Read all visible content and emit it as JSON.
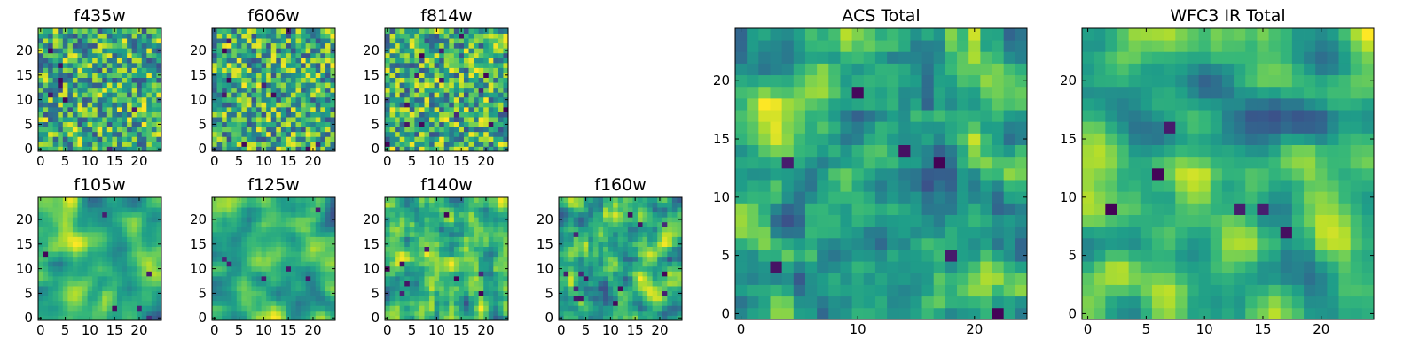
{
  "chart_data": [
    {
      "type": "heatmap",
      "title": "f435w",
      "grid_size": 25,
      "xlim": [
        -0.5,
        24.5
      ],
      "ylim": [
        -0.5,
        24.5
      ],
      "xticks": [
        0,
        5,
        10,
        15,
        20
      ],
      "xtick_labels": [
        "0",
        "5",
        "10",
        "15",
        "20"
      ],
      "yticks": [
        0,
        5,
        10,
        15,
        20
      ],
      "ytick_labels": [
        "0",
        "5",
        "10",
        "15",
        "20"
      ],
      "colormap": "viridis",
      "seed": 11,
      "smoothing": 0,
      "dark_spots": 8
    },
    {
      "type": "heatmap",
      "title": "f606w",
      "grid_size": 25,
      "xlim": [
        -0.5,
        24.5
      ],
      "ylim": [
        -0.5,
        24.5
      ],
      "xticks": [
        0,
        5,
        10,
        15,
        20
      ],
      "xtick_labels": [
        "0",
        "5",
        "10",
        "15",
        "20"
      ],
      "yticks": [
        0,
        5,
        10,
        15,
        20
      ],
      "ytick_labels": [
        "0",
        "5",
        "10",
        "15",
        "20"
      ],
      "colormap": "viridis",
      "seed": 23,
      "smoothing": 0,
      "dark_spots": 10
    },
    {
      "type": "heatmap",
      "title": "f814w",
      "grid_size": 25,
      "xlim": [
        -0.5,
        24.5
      ],
      "ylim": [
        -0.5,
        24.5
      ],
      "xticks": [
        0,
        5,
        10,
        15,
        20
      ],
      "xtick_labels": [
        "0",
        "5",
        "10",
        "15",
        "20"
      ],
      "yticks": [
        0,
        5,
        10,
        15,
        20
      ],
      "ytick_labels": [
        "0",
        "5",
        "10",
        "15",
        "20"
      ],
      "colormap": "viridis",
      "seed": 37,
      "smoothing": 0,
      "dark_spots": 14
    },
    {
      "type": "heatmap",
      "title": "f105w",
      "grid_size": 25,
      "xlim": [
        -0.5,
        24.5
      ],
      "ylim": [
        -0.5,
        24.5
      ],
      "xticks": [
        0,
        5,
        10,
        15,
        20
      ],
      "xtick_labels": [
        "0",
        "5",
        "10",
        "15",
        "20"
      ],
      "yticks": [
        0,
        5,
        10,
        15,
        20
      ],
      "ytick_labels": [
        "0",
        "5",
        "10",
        "15",
        "20"
      ],
      "colormap": "viridis",
      "seed": 41,
      "smoothing": 2,
      "dark_spots": 6
    },
    {
      "type": "heatmap",
      "title": "f125w",
      "grid_size": 25,
      "xlim": [
        -0.5,
        24.5
      ],
      "ylim": [
        -0.5,
        24.5
      ],
      "xticks": [
        0,
        5,
        10,
        15,
        20
      ],
      "xtick_labels": [
        "0",
        "5",
        "10",
        "15",
        "20"
      ],
      "yticks": [
        0,
        5,
        10,
        15,
        20
      ],
      "ytick_labels": [
        "0",
        "5",
        "10",
        "15",
        "20"
      ],
      "colormap": "viridis",
      "seed": 53,
      "smoothing": 2,
      "dark_spots": 6
    },
    {
      "type": "heatmap",
      "title": "f140w",
      "grid_size": 25,
      "xlim": [
        -0.5,
        24.5
      ],
      "ylim": [
        -0.5,
        24.5
      ],
      "xticks": [
        0,
        5,
        10,
        15,
        20
      ],
      "xtick_labels": [
        "0",
        "5",
        "10",
        "15",
        "20"
      ],
      "yticks": [
        0,
        5,
        10,
        15,
        20
      ],
      "ytick_labels": [
        "0",
        "5",
        "10",
        "15",
        "20"
      ],
      "colormap": "viridis",
      "seed": 67,
      "smoothing": 1,
      "dark_spots": 9
    },
    {
      "type": "heatmap",
      "title": "f160w",
      "grid_size": 25,
      "xlim": [
        -0.5,
        24.5
      ],
      "ylim": [
        -0.5,
        24.5
      ],
      "xticks": [
        0,
        5,
        10,
        15,
        20
      ],
      "xtick_labels": [
        "0",
        "5",
        "10",
        "15",
        "20"
      ],
      "yticks": [
        0,
        5,
        10,
        15,
        20
      ],
      "ytick_labels": [
        "0",
        "5",
        "10",
        "15",
        "20"
      ],
      "colormap": "viridis",
      "seed": 79,
      "smoothing": 1,
      "dark_spots": 14
    },
    {
      "type": "heatmap",
      "title": "ACS Total",
      "grid_size": 25,
      "xlim": [
        -0.5,
        24.5
      ],
      "ylim": [
        -0.5,
        24.5
      ],
      "xticks": [
        0,
        10,
        20
      ],
      "xtick_labels": [
        "0",
        "10",
        "20"
      ],
      "yticks": [
        0,
        5,
        10,
        15,
        20
      ],
      "ytick_labels": [
        "0",
        "5",
        "10",
        "15",
        "20"
      ],
      "colormap": "viridis",
      "seed": 83,
      "smoothing": 1,
      "dark_spots": 7
    },
    {
      "type": "heatmap",
      "title": "WFC3 IR Total",
      "grid_size": 25,
      "xlim": [
        -0.5,
        24.5
      ],
      "ylim": [
        -0.5,
        24.5
      ],
      "xticks": [
        0,
        5,
        10,
        15,
        20
      ],
      "xtick_labels": [
        "0",
        "5",
        "10",
        "15",
        "20"
      ],
      "yticks": [
        0,
        5,
        10,
        15,
        20
      ],
      "ytick_labels": [
        "0",
        "5",
        "10",
        "15",
        "20"
      ],
      "colormap": "viridis",
      "seed": 97,
      "smoothing": 2,
      "dark_spots": 6
    }
  ]
}
